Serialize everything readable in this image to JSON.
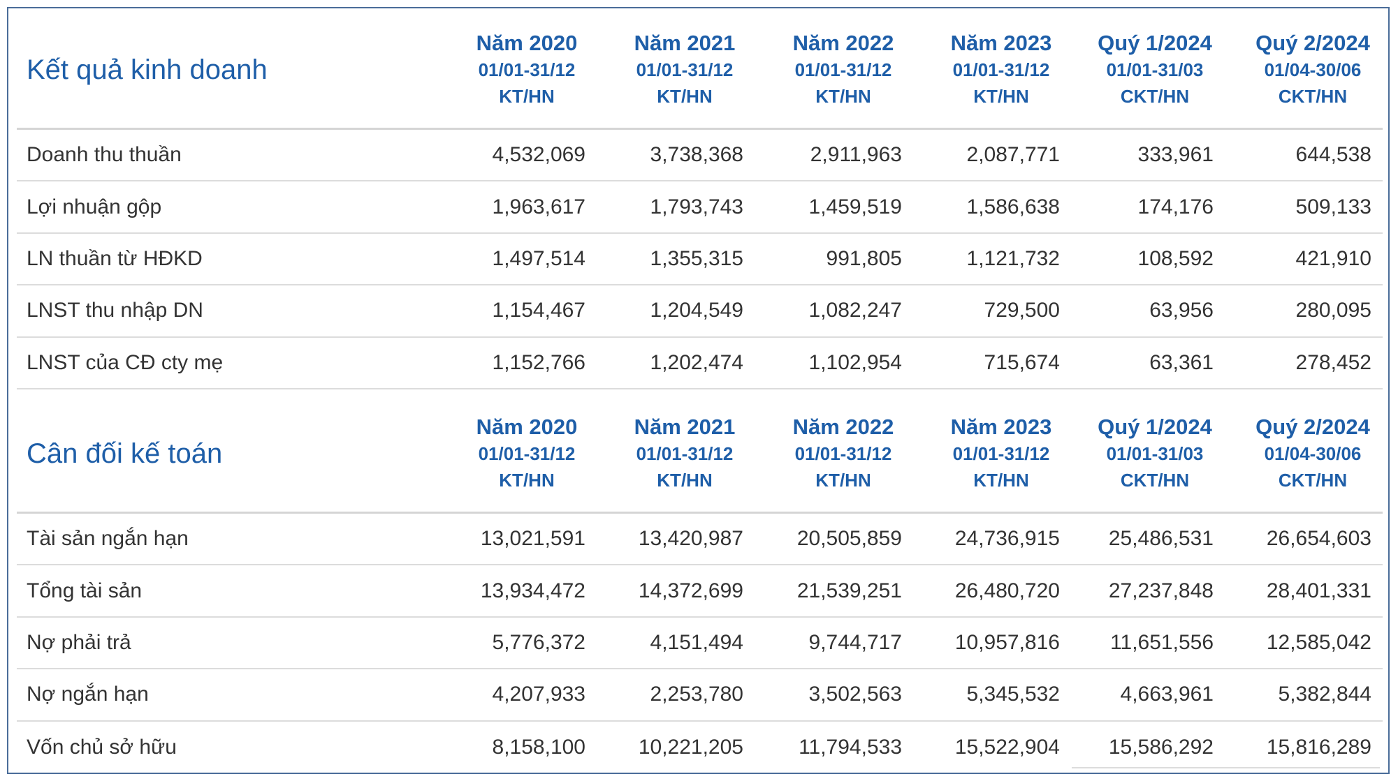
{
  "columns": [
    {
      "period": "Năm 2020",
      "range": "01/01-31/12",
      "audit": "KT/HN"
    },
    {
      "period": "Năm 2021",
      "range": "01/01-31/12",
      "audit": "KT/HN"
    },
    {
      "period": "Năm 2022",
      "range": "01/01-31/12",
      "audit": "KT/HN"
    },
    {
      "period": "Năm 2023",
      "range": "01/01-31/12",
      "audit": "KT/HN"
    },
    {
      "period": "Quý 1/2024",
      "range": "01/01-31/03",
      "audit": "CKT/HN"
    },
    {
      "period": "Quý 2/2024",
      "range": "01/04-30/06",
      "audit": "CKT/HN"
    }
  ],
  "sections": [
    {
      "title": "Kết quả kinh doanh",
      "rows": [
        {
          "label": "Doanh thu thuần",
          "values": [
            "4,532,069",
            "3,738,368",
            "2,911,963",
            "2,087,771",
            "333,961",
            "644,538"
          ]
        },
        {
          "label": "Lợi nhuận gộp",
          "values": [
            "1,963,617",
            "1,793,743",
            "1,459,519",
            "1,586,638",
            "174,176",
            "509,133"
          ]
        },
        {
          "label": "LN thuần từ HĐKD",
          "values": [
            "1,497,514",
            "1,355,315",
            "991,805",
            "1,121,732",
            "108,592",
            "421,910"
          ]
        },
        {
          "label": "LNST thu nhập DN",
          "values": [
            "1,154,467",
            "1,204,549",
            "1,082,247",
            "729,500",
            "63,956",
            "280,095"
          ]
        },
        {
          "label": "LNST của CĐ cty mẹ",
          "values": [
            "1,152,766",
            "1,202,474",
            "1,102,954",
            "715,674",
            "63,361",
            "278,452"
          ]
        }
      ]
    },
    {
      "title": "Cân đối kế toán",
      "rows": [
        {
          "label": "Tài sản ngắn hạn",
          "values": [
            "13,021,591",
            "13,420,987",
            "20,505,859",
            "24,736,915",
            "25,486,531",
            "26,654,603"
          ]
        },
        {
          "label": "Tổng tài sản",
          "values": [
            "13,934,472",
            "14,372,699",
            "21,539,251",
            "26,480,720",
            "27,237,848",
            "28,401,331"
          ]
        },
        {
          "label": "Nợ phải trả",
          "values": [
            "5,776,372",
            "4,151,494",
            "9,744,717",
            "10,957,816",
            "11,651,556",
            "12,585,042"
          ]
        },
        {
          "label": "Nợ ngắn hạn",
          "values": [
            "4,207,933",
            "2,253,780",
            "3,502,563",
            "5,345,532",
            "4,663,961",
            "5,382,844"
          ]
        },
        {
          "label": "Vốn chủ sở hữu",
          "values": [
            "8,158,100",
            "10,221,205",
            "11,794,533",
            "15,522,904",
            "15,586,292",
            "15,816,289"
          ]
        }
      ]
    }
  ]
}
